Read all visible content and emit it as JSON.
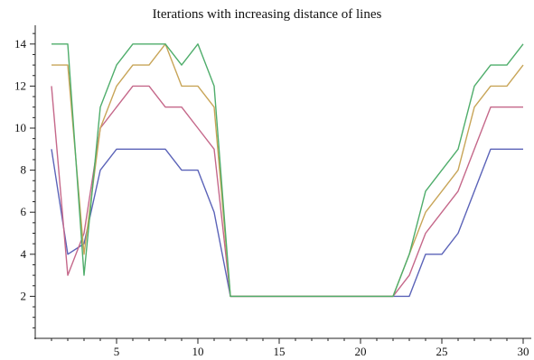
{
  "chart_data": {
    "type": "line",
    "title": "Iterations with increasing distance of lines",
    "xlabel": "",
    "ylabel": "",
    "xlim": [
      0,
      30.5
    ],
    "ylim": [
      0,
      14.7
    ],
    "grid": false,
    "x_ticks_major": [
      5,
      10,
      15,
      20,
      25,
      30
    ],
    "y_ticks_major": [
      2,
      4,
      6,
      8,
      10,
      12,
      14
    ],
    "x": [
      1,
      2,
      3,
      4,
      5,
      6,
      7,
      8,
      9,
      10,
      11,
      12,
      13,
      14,
      15,
      16,
      17,
      18,
      19,
      20,
      21,
      22,
      23,
      24,
      25,
      26,
      27,
      28,
      29,
      30
    ],
    "series": [
      {
        "color": "#5b63b8",
        "values": [
          9,
          4,
          4.5,
          8,
          9,
          9,
          9,
          9,
          8,
          8,
          6,
          2,
          2,
          2,
          2,
          2,
          2,
          2,
          2,
          2,
          2,
          2,
          2,
          4,
          4,
          5,
          7,
          9,
          9,
          9
        ]
      },
      {
        "color": "#c5688a",
        "values": [
          12,
          3,
          5,
          10,
          11,
          12,
          12,
          11,
          11,
          10,
          9,
          2,
          2,
          2,
          2,
          2,
          2,
          2,
          2,
          2,
          2,
          2,
          3,
          5,
          6,
          7,
          9,
          11,
          11,
          11
        ]
      },
      {
        "color": "#c8a558",
        "values": [
          13,
          13,
          4,
          10,
          12,
          13,
          13,
          14,
          12,
          12,
          11,
          2,
          2,
          2,
          2,
          2,
          2,
          2,
          2,
          2,
          2,
          2,
          4,
          6,
          7,
          8,
          11,
          12,
          12,
          13
        ]
      },
      {
        "color": "#4fad6b",
        "values": [
          14,
          14,
          3,
          11,
          13,
          14,
          14,
          14,
          13,
          14,
          12,
          2,
          2,
          2,
          2,
          2,
          2,
          2,
          2,
          2,
          2,
          2,
          4,
          7,
          8,
          9,
          12,
          13,
          13,
          14
        ]
      }
    ]
  }
}
